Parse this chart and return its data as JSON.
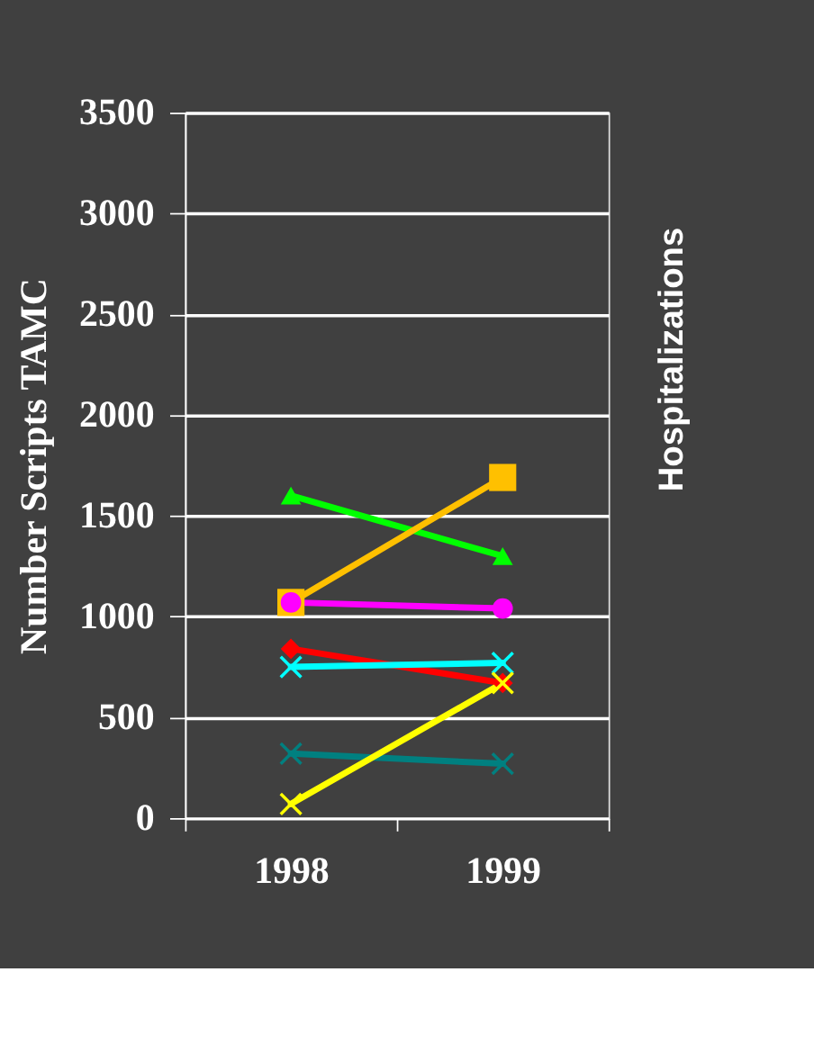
{
  "chart_data": {
    "type": "line",
    "ylabel": "Number Scripts TAMC",
    "categories": [
      "1998",
      "1999"
    ],
    "series": [
      {
        "color": "#00ff00",
        "marker": "triangle",
        "values": [
          1600,
          1300
        ]
      },
      {
        "color": "#ffc000",
        "marker": "square",
        "values": [
          1070,
          1690
        ]
      },
      {
        "color": "#ff00ff",
        "marker": "circle",
        "values": [
          1070,
          1040
        ]
      },
      {
        "color": "#ff0000",
        "marker": "diamond",
        "values": [
          840,
          670
        ]
      },
      {
        "color": "#00ffff",
        "marker": "cross",
        "values": [
          750,
          770
        ]
      },
      {
        "color": "#008080",
        "marker": "cross",
        "values": [
          320,
          270
        ]
      },
      {
        "color": "#ffff00",
        "marker": "cross",
        "values": [
          70,
          670
        ]
      }
    ],
    "ylim": [
      0,
      3500
    ],
    "yticks": [
      0,
      500,
      1000,
      1500,
      2000,
      2500,
      3000,
      3500
    ],
    "grid": "y",
    "legend": false,
    "annotations": [
      "Hospitalizations"
    ]
  }
}
